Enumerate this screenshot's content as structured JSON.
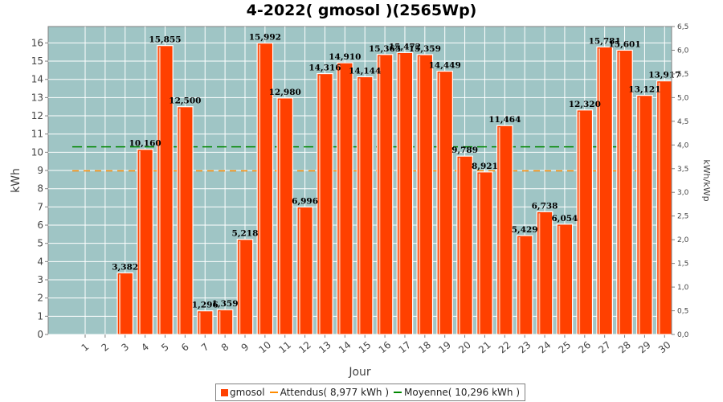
{
  "chart_data": {
    "type": "bar",
    "title": "4-2022( gmosol )(2565Wp)",
    "xlabel": "Jour",
    "ylabel": "kWh",
    "y2label": "kWh/kWp",
    "ylim": [
      0,
      16.9
    ],
    "y2lim": [
      0,
      6.5
    ],
    "yticks": [
      0,
      1,
      2,
      3,
      4,
      5,
      6,
      7,
      8,
      9,
      10,
      11,
      12,
      13,
      14,
      15,
      16
    ],
    "y2ticks": [
      "0,0",
      "0,5",
      "1,0",
      "1,5",
      "2,0",
      "2,5",
      "3,0",
      "3,5",
      "4,0",
      "4,5",
      "5,0",
      "5,5",
      "6,0",
      "6,5"
    ],
    "categories": [
      "1",
      "2",
      "3",
      "4",
      "5",
      "6",
      "7",
      "8",
      "9",
      "10",
      "11",
      "12",
      "13",
      "14",
      "15",
      "16",
      "17",
      "18",
      "19",
      "20",
      "21",
      "22",
      "23",
      "24",
      "25",
      "26",
      "27",
      "28",
      "29",
      "30"
    ],
    "series": [
      {
        "name": "gmosol",
        "values": [
          0,
          0,
          3.382,
          10.16,
          15.855,
          12.5,
          1.296,
          1.359,
          5.218,
          15.992,
          12.98,
          6.996,
          14.316,
          14.91,
          14.144,
          15.365,
          15.472,
          15.359,
          14.449,
          9.789,
          8.921,
          11.464,
          5.429,
          6.738,
          6.054,
          12.32,
          15.781,
          15.601,
          13.121,
          13.917
        ],
        "labels": [
          "",
          "",
          "3,382",
          "10,160",
          "15,855",
          "12,500",
          "1,296",
          "1,359",
          "5,218",
          "15,992",
          "12,980",
          "6,996",
          "14,316",
          "14,910",
          "14,144",
          "15,365",
          "15,472",
          "15,359",
          "14,449",
          "9,789",
          "8,921",
          "11,464",
          "5,429",
          "6,738",
          "6,054",
          "12,320",
          "15,781",
          "15,601",
          "13,121",
          "13,917"
        ],
        "color": "#ff4000"
      }
    ],
    "reference_lines": [
      {
        "name": "Attendus( 8,977 kWh )",
        "value": 8.977,
        "color": "#ff8c00",
        "dash": "8,6"
      },
      {
        "name": "Moyenne( 10,296 kWh )",
        "value": 10.296,
        "color": "#008800",
        "dash": "12,6"
      }
    ],
    "legend_position": "bottom-center",
    "grid": true,
    "plot_background": "#9fc5c5",
    "grid_color": "#ffffff"
  }
}
